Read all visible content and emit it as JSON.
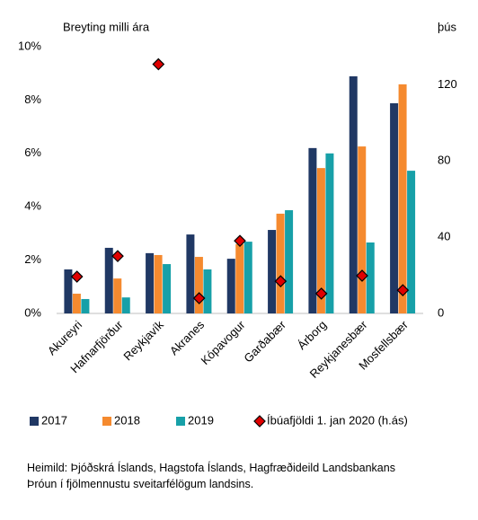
{
  "chart_data": {
    "type": "bar",
    "y_axis_title": "Breyting milli ára",
    "y2_axis_title": "þús",
    "categories": [
      "Akureyri",
      "Hafnarfjörður",
      "Reykjavík",
      "Akranes",
      "Kópavogur",
      "Garðabær",
      "Árborg",
      "Reykjanesbær",
      "Mosfellsbær"
    ],
    "series": [
      {
        "name": "2017",
        "color": "#203864",
        "values": [
          1.65,
          2.46,
          2.26,
          2.96,
          2.05,
          3.13,
          6.2,
          8.89,
          7.88
        ]
      },
      {
        "name": "2018",
        "color": "#f58a2f",
        "values": [
          0.74,
          1.31,
          2.19,
          2.12,
          2.6,
          3.74,
          5.45,
          6.26,
          8.59
        ]
      },
      {
        "name": "2019",
        "color": "#17a0a8",
        "values": [
          0.54,
          0.6,
          1.85,
          1.65,
          2.69,
          3.87,
          6.0,
          2.66,
          5.35
        ]
      },
      {
        "name": "Íbúafjöldi 1. jan 2020 (h.ás)",
        "color": "#e00000",
        "axis": "y2",
        "type": "scatter",
        "marker": "diamond",
        "values": [
          19.3,
          30.1,
          130.8,
          8,
          38.1,
          16.9,
          10.4,
          19.8,
          12.2
        ]
      }
    ],
    "ylim": [
      0,
      10
    ],
    "yticks": [
      {
        "value": 0,
        "label": "0%"
      },
      {
        "value": 2,
        "label": "2%"
      },
      {
        "value": 4,
        "label": "4%"
      },
      {
        "value": 6,
        "label": "6%"
      },
      {
        "value": 8,
        "label": "8%"
      },
      {
        "value": 10,
        "label": "10%"
      }
    ],
    "y2lim": [
      0,
      140
    ],
    "y2ticks": [
      0,
      40,
      80,
      120
    ],
    "legend": "bottom",
    "notes": [
      "Heimild: Þjóðskrá Íslands, Hagstofa Íslands, Hagfræðideild Landsbankans",
      "Þróun í fjölmennustu sveitarfélögum landsins."
    ]
  }
}
